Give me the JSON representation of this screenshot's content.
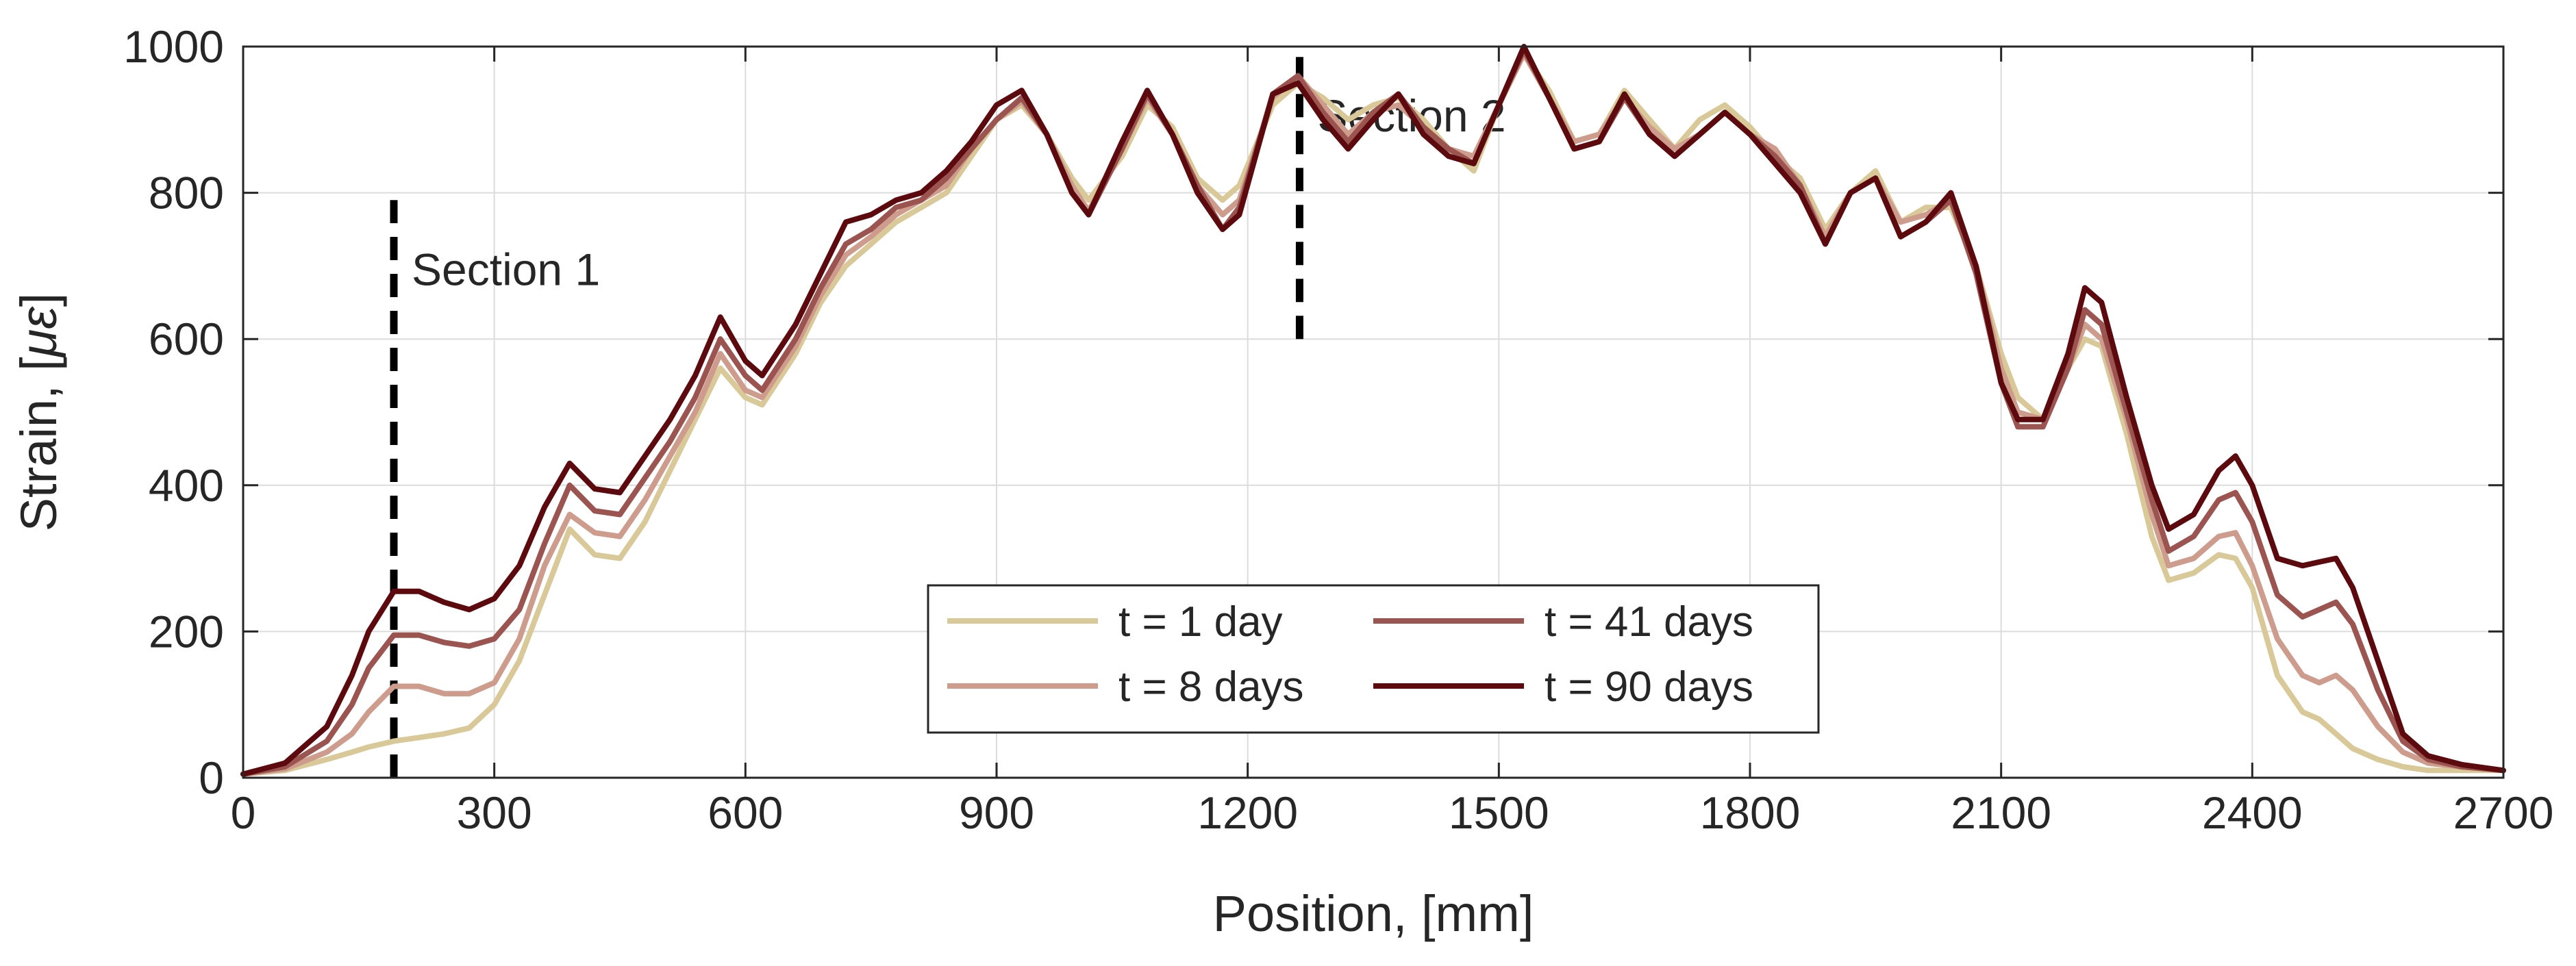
{
  "chart_data": {
    "type": "line",
    "title": "",
    "xlabel": "Position, [mm]",
    "ylabel": "Strain, [",
    "ylabel_symbol": "με",
    "ylabel_close": "]",
    "xlim": [
      0,
      2700
    ],
    "ylim": [
      0,
      1000
    ],
    "xticks": [
      0,
      300,
      600,
      900,
      1200,
      1500,
      1800,
      2100,
      2400,
      2700
    ],
    "yticks": [
      0,
      200,
      400,
      600,
      800,
      1000
    ],
    "grid": true,
    "legend_position": "bottom-center",
    "x": [
      0,
      50,
      100,
      130,
      150,
      180,
      210,
      240,
      270,
      300,
      330,
      360,
      390,
      420,
      450,
      480,
      510,
      540,
      570,
      600,
      620,
      660,
      690,
      720,
      750,
      780,
      810,
      840,
      870,
      900,
      930,
      960,
      990,
      1010,
      1050,
      1080,
      1110,
      1140,
      1170,
      1190,
      1230,
      1260,
      1290,
      1320,
      1350,
      1380,
      1410,
      1440,
      1470,
      1500,
      1530,
      1560,
      1590,
      1620,
      1650,
      1680,
      1710,
      1740,
      1770,
      1800,
      1830,
      1860,
      1890,
      1920,
      1950,
      1980,
      2010,
      2040,
      2070,
      2100,
      2120,
      2150,
      2180,
      2200,
      2220,
      2250,
      2280,
      2300,
      2330,
      2360,
      2380,
      2400,
      2430,
      2460,
      2480,
      2500,
      2520,
      2550,
      2580,
      2610,
      2650,
      2700
    ],
    "series": [
      {
        "name": "t = 1 day",
        "color": "#D9C999",
        "values": [
          5,
          10,
          25,
          35,
          42,
          50,
          55,
          60,
          68,
          100,
          160,
          250,
          340,
          305,
          300,
          350,
          420,
          490,
          560,
          520,
          510,
          580,
          650,
          700,
          730,
          760,
          780,
          800,
          850,
          900,
          920,
          880,
          820,
          790,
          850,
          920,
          890,
          820,
          790,
          810,
          920,
          950,
          930,
          900,
          920,
          930,
          900,
          860,
          830,
          920,
          990,
          940,
          870,
          880,
          940,
          900,
          860,
          900,
          920,
          890,
          850,
          820,
          750,
          800,
          830,
          760,
          780,
          780,
          700,
          580,
          520,
          490,
          560,
          600,
          590,
          470,
          330,
          270,
          280,
          305,
          300,
          260,
          140,
          90,
          80,
          60,
          40,
          25,
          15,
          10,
          10,
          10
        ]
      },
      {
        "name": "t = 8 days",
        "color": "#CE9C8D",
        "values": [
          5,
          12,
          35,
          60,
          90,
          125,
          125,
          115,
          115,
          130,
          190,
          290,
          360,
          335,
          330,
          380,
          440,
          500,
          580,
          530,
          520,
          590,
          660,
          715,
          740,
          770,
          790,
          810,
          860,
          900,
          925,
          880,
          810,
          775,
          860,
          930,
          880,
          810,
          770,
          790,
          930,
          960,
          920,
          880,
          910,
          920,
          890,
          860,
          850,
          920,
          990,
          930,
          870,
          880,
          930,
          890,
          860,
          880,
          910,
          880,
          860,
          810,
          740,
          800,
          820,
          760,
          770,
          790,
          700,
          560,
          500,
          490,
          560,
          620,
          600,
          490,
          360,
          290,
          300,
          330,
          335,
          290,
          190,
          140,
          130,
          140,
          120,
          70,
          35,
          20,
          15,
          10
        ]
      },
      {
        "name": "t = 41 days",
        "color": "#9C5451",
        "values": [
          5,
          15,
          50,
          100,
          150,
          195,
          195,
          185,
          180,
          190,
          230,
          320,
          400,
          365,
          360,
          410,
          460,
          520,
          600,
          550,
          530,
          600,
          670,
          730,
          750,
          780,
          790,
          820,
          860,
          900,
          930,
          880,
          800,
          770,
          860,
          935,
          880,
          810,
          750,
          780,
          935,
          960,
          910,
          870,
          910,
          935,
          890,
          860,
          840,
          920,
          995,
          930,
          860,
          870,
          930,
          880,
          850,
          880,
          910,
          880,
          850,
          810,
          730,
          800,
          820,
          740,
          760,
          790,
          690,
          540,
          480,
          480,
          560,
          640,
          620,
          500,
          380,
          310,
          330,
          380,
          390,
          350,
          250,
          220,
          230,
          240,
          210,
          120,
          50,
          25,
          15,
          10
        ]
      },
      {
        "name": "t = 90 days",
        "color": "#5C0A0E",
        "values": [
          5,
          20,
          70,
          140,
          200,
          255,
          255,
          240,
          230,
          245,
          290,
          370,
          430,
          395,
          390,
          440,
          490,
          550,
          630,
          570,
          550,
          620,
          690,
          760,
          770,
          790,
          800,
          830,
          870,
          920,
          940,
          880,
          800,
          770,
          870,
          940,
          880,
          800,
          750,
          770,
          935,
          950,
          900,
          860,
          900,
          935,
          880,
          850,
          840,
          920,
          1000,
          930,
          860,
          870,
          935,
          880,
          850,
          880,
          910,
          880,
          840,
          800,
          730,
          800,
          820,
          740,
          760,
          800,
          700,
          540,
          490,
          490,
          580,
          670,
          650,
          520,
          400,
          340,
          360,
          420,
          440,
          400,
          300,
          290,
          295,
          300,
          260,
          160,
          60,
          30,
          18,
          10
        ]
      }
    ],
    "annotations": [
      {
        "label": "Section 1",
        "x": 180,
        "y_from": 0,
        "y_to": 790
      },
      {
        "label": "Section 2",
        "x": 1262,
        "y_from": 600,
        "y_to": 1000
      }
    ]
  }
}
